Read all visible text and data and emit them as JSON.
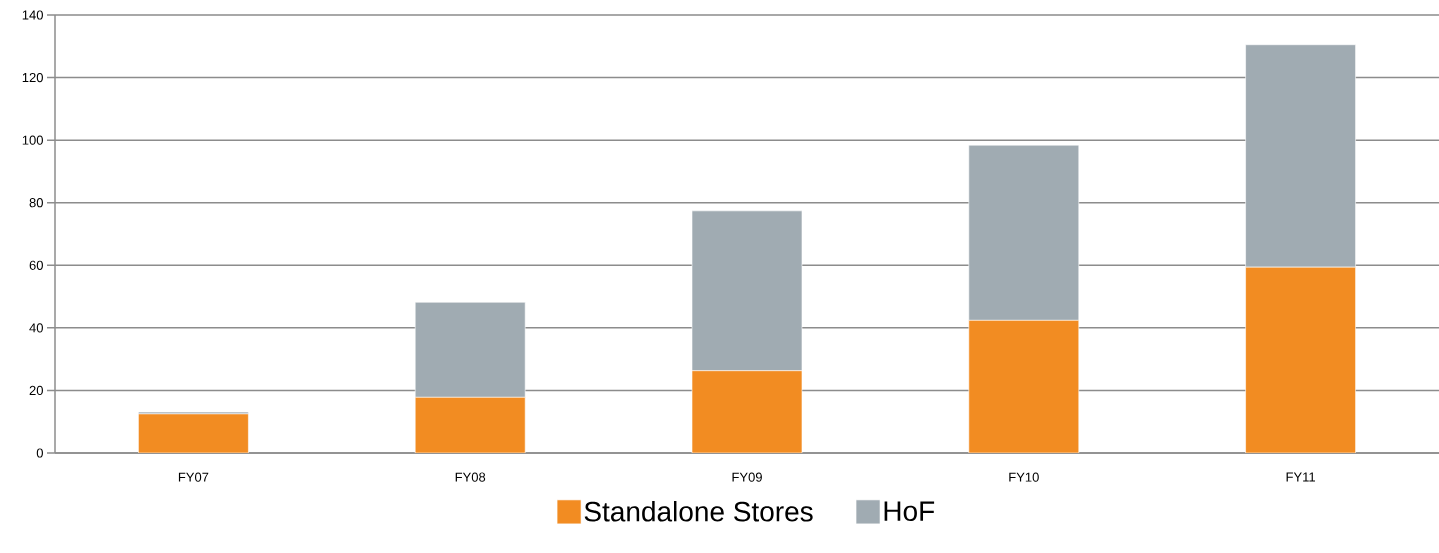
{
  "chart_data": {
    "type": "bar",
    "stacked": true,
    "categories": [
      "FY07",
      "FY08",
      "FY09",
      "FY10",
      "FY11"
    ],
    "series": [
      {
        "name": "Standalone Stores",
        "color": "#f28c22",
        "values": [
          12.5,
          17.8,
          26.3,
          42.4,
          59.4
        ]
      },
      {
        "name": "HoF",
        "color": "#a0abb2",
        "values": [
          0.6,
          30.4,
          51.1,
          56.0,
          71.1
        ]
      }
    ],
    "ylim": [
      0,
      140
    ],
    "yticks": [
      0,
      20,
      40,
      60,
      80,
      100,
      120,
      140
    ],
    "grid": "y",
    "legend": "bottom"
  }
}
